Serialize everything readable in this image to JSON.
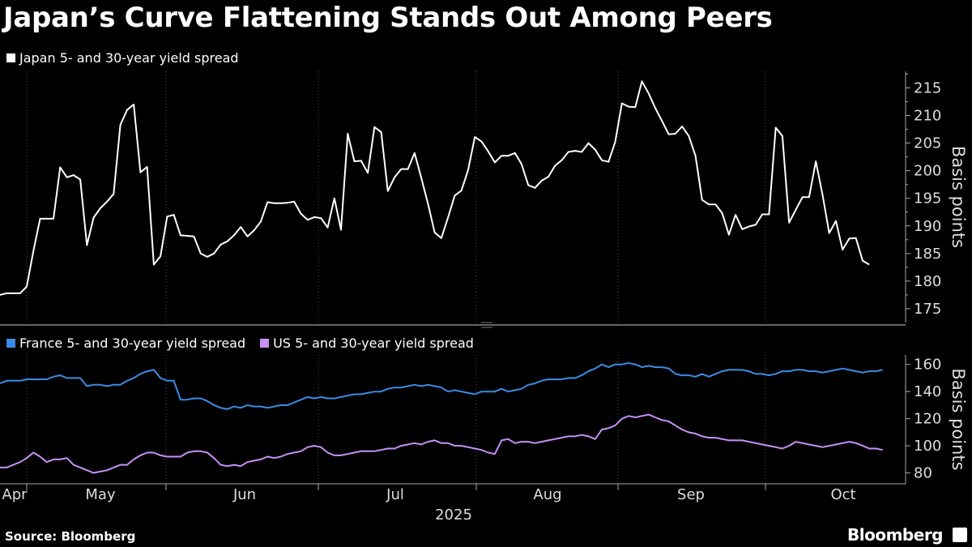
{
  "title": "Japan’s Curve Flattening Stands Out Among Peers",
  "source": "Source: Bloomberg",
  "brand": "Bloomberg",
  "colors": {
    "japan": "#ffffff",
    "france": "#3b8be6",
    "us": "#c890f5",
    "grid": "#555555"
  },
  "chart_data": [
    {
      "type": "line",
      "ylabel": "Basis points",
      "ylim": [
        172.5,
        218
      ],
      "yticks": [
        175,
        180,
        185,
        190,
        195,
        200,
        205,
        210,
        215
      ],
      "x_range": [
        0,
        133
      ],
      "grid": true,
      "legend": "top-left",
      "series": [
        {
          "name": "Japan 5- and 30-year yield spread",
          "color": "#ffffff",
          "values": [
            177.5,
            177.8,
            177.8,
            177.8,
            179,
            185.5,
            191.3,
            191.3,
            191.3,
            200.6,
            198.8,
            199.2,
            198.4,
            186.5,
            191.5,
            193.2,
            194.4,
            195.8,
            208.3,
            211,
            212,
            199.7,
            200.7,
            183,
            184.5,
            191.7,
            192,
            188.3,
            188.2,
            188.1,
            185,
            184.4,
            185,
            186.6,
            187.2,
            188.3,
            189.8,
            188.1,
            189.2,
            190.8,
            194.3,
            194.1,
            194.1,
            194.2,
            194.4,
            192.2,
            191.1,
            191.6,
            191.4,
            189.7,
            195,
            189.3,
            206.7,
            201.7,
            201.8,
            199.6,
            207.9,
            207,
            196.3,
            198.8,
            200.3,
            200.3,
            203.2,
            198.7,
            194,
            188.8,
            187.8,
            191.5,
            195.5,
            196.4,
            200.1,
            206.1,
            205.3,
            203.5,
            201.5,
            202.7,
            202.7,
            203.2,
            201.2,
            197.4,
            196.9,
            198.2,
            198.9,
            200.9,
            201.9,
            203.4,
            203.6,
            203.4,
            205,
            203.8,
            201.9,
            201.6,
            205.2,
            212.2,
            211.6,
            211.5,
            216.2,
            214,
            211.3,
            209,
            206.6,
            206.7,
            208,
            206.3,
            202.7,
            194.7,
            193.9,
            193.9,
            192.3,
            188.4,
            192,
            189.4,
            189.9,
            190.2,
            192.1,
            192.1,
            207.8,
            206.3,
            190.6,
            192.9,
            195.2,
            195.2,
            201.7,
            195.7,
            188.7,
            190.9,
            185.7,
            187.7,
            187.8,
            183.7,
            183
          ]
        }
      ]
    },
    {
      "type": "line",
      "ylabel": "Basis points",
      "ylim": [
        72,
        167
      ],
      "yticks": [
        80,
        100,
        120,
        140,
        160
      ],
      "x_range": [
        0,
        133
      ],
      "xticklabels": [
        "Apr",
        "May",
        "Jun",
        "Jul",
        "Aug",
        "Sep",
        "Oct"
      ],
      "xlabel": "2025",
      "grid": true,
      "legend": "top-left",
      "series": [
        {
          "name": "France 5- and 30-year yield spread",
          "color": "#3b8be6",
          "values": [
            146,
            148,
            148,
            148,
            149,
            149,
            149,
            149,
            151,
            152,
            150,
            150,
            150,
            144,
            145,
            145,
            144,
            145,
            145,
            148,
            150,
            153,
            155,
            156,
            150,
            148,
            148,
            134,
            134,
            135,
            135,
            133,
            130,
            128,
            127,
            129,
            128,
            130,
            129,
            129,
            128,
            129,
            130,
            130,
            132,
            134,
            136,
            135,
            136,
            135,
            135,
            136,
            137,
            138,
            138,
            139,
            140,
            140,
            142,
            143,
            143,
            144,
            145,
            144,
            145,
            144,
            143,
            140,
            141,
            140,
            139,
            138,
            140,
            140,
            140,
            142,
            140,
            141,
            142,
            145,
            146,
            148,
            149,
            149,
            149,
            150,
            150,
            152,
            155,
            157,
            160,
            158,
            160,
            160,
            161,
            160,
            158,
            159,
            158,
            158,
            157,
            153,
            152,
            152,
            151,
            153,
            151,
            153,
            155,
            156,
            156,
            156,
            155,
            153,
            153,
            152,
            153,
            155,
            155,
            156,
            156,
            155,
            155,
            154,
            155,
            156,
            157,
            156,
            155,
            154,
            155,
            155,
            156
          ]
        },
        {
          "name": "US 5- and 30-year yield spread",
          "color": "#c890f5",
          "values": [
            84,
            84,
            86,
            88,
            91,
            95,
            92,
            88,
            90,
            90,
            91,
            86,
            84,
            82,
            80,
            81,
            82,
            84,
            86,
            86,
            90,
            93,
            95,
            95,
            93,
            92,
            92,
            92,
            95,
            96,
            96,
            95,
            91,
            86,
            85,
            86,
            85,
            88,
            89,
            90,
            92,
            91,
            92,
            94,
            95,
            96,
            99,
            100,
            99,
            95,
            93,
            93,
            94,
            95,
            96,
            96,
            96,
            97,
            98,
            98,
            100,
            101,
            102,
            101,
            103,
            104,
            102,
            102,
            100,
            100,
            99,
            98,
            97,
            95,
            94,
            104,
            105,
            102,
            103,
            103,
            102,
            103,
            104,
            105,
            106,
            107,
            107,
            108,
            107,
            105,
            112,
            113,
            115,
            120,
            122,
            121,
            122,
            123,
            121,
            119,
            118,
            115,
            112,
            110,
            109,
            107,
            106,
            106,
            105,
            104,
            104,
            104,
            103,
            102,
            101,
            100,
            99,
            98,
            100,
            103,
            102,
            101,
            100,
            99,
            100,
            101,
            102,
            103,
            102,
            100,
            98,
            98,
            97
          ]
        }
      ]
    }
  ]
}
